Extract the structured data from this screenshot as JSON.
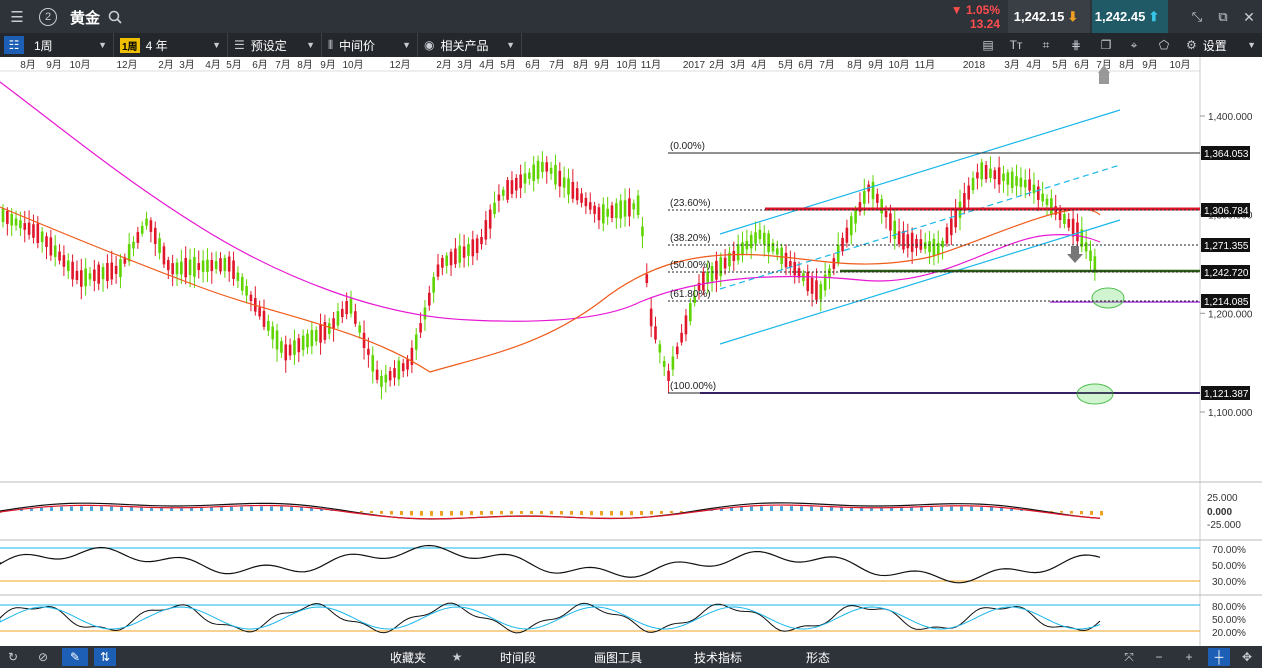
{
  "header": {
    "title": "黄金",
    "workspace_number": "2",
    "change_percent": "1.05%",
    "change_abs": "13.24",
    "bid": "1,242.15",
    "ask": "1,242.45"
  },
  "toolbar": {
    "interval": "1周",
    "interval_badge": "1周",
    "range": "4 年",
    "presets": "预设定",
    "price_type": "中间价",
    "related": "相关产品",
    "settings": "设置"
  },
  "time_axis": {
    "labels": [
      "8月",
      "9月",
      "10月",
      "12月",
      "2月",
      "3月",
      "4月",
      "5月",
      "6月",
      "7月",
      "8月",
      "9月",
      "10月",
      "12月",
      "2月",
      "3月",
      "4月",
      "5月",
      "6月",
      "7月",
      "8月",
      "9月",
      "10月",
      "11月",
      "2017",
      "2月",
      "3月",
      "4月",
      "5月",
      "6月",
      "7月",
      "8月",
      "9月",
      "10月",
      "11月",
      "2018",
      "3月",
      "4月",
      "5月",
      "6月",
      "7月",
      "8月",
      "9月",
      "10月"
    ]
  },
  "price_axis": {
    "ticks": [
      "1,400.000",
      "1,300.000",
      "1,200.000",
      "1,100.000"
    ]
  },
  "fib_levels": [
    {
      "label": "(0.00%)",
      "value": "1,364.053"
    },
    {
      "label": "(23.60%)",
      "value": "1,306.784"
    },
    {
      "label": "(38.20%)",
      "value": "1,271.355"
    },
    {
      "label": "(50.00%)",
      "value": "1,242.720"
    },
    {
      "label": "(61.80%)",
      "value": "1,214.085"
    },
    {
      "label": "(100.00%)",
      "value": "1,121.387"
    }
  ],
  "indicators": {
    "macd_ticks": [
      "25.000",
      "0.000",
      "-25.000"
    ],
    "rsi_ticks": [
      "70.00%",
      "50.00%",
      "30.00%"
    ],
    "stoch_ticks": [
      "80.00%",
      "50.00%",
      "20.00%"
    ]
  },
  "bottombar": {
    "favorites": "收藏夹",
    "timeframe": "时间段",
    "drawing_tools": "画图工具",
    "indicators": "技术指标",
    "patterns": "形态"
  },
  "colors": {
    "up": "#5fd400",
    "down": "#e0162b",
    "ma_slow": "#e817d4",
    "ma_fast": "#f05a1a",
    "channel": "#1ab7ea",
    "accent": "#1f5a66"
  }
}
